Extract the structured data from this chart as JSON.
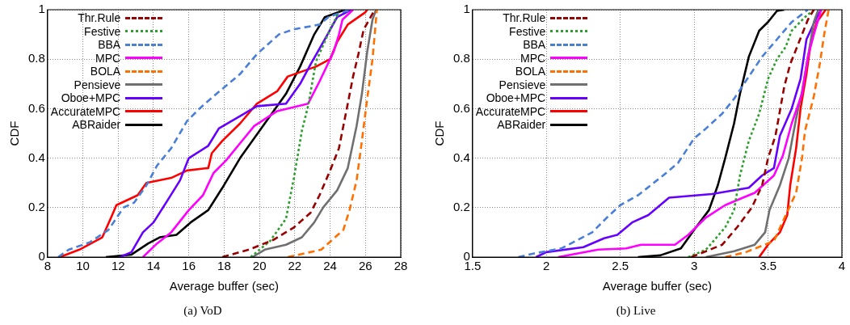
{
  "chart_data": [
    {
      "type": "line",
      "title": "(a) VoD",
      "xlabel": "Average buffer (sec)",
      "ylabel": "CDF",
      "xlim": [
        8,
        28
      ],
      "xticks": [
        8,
        10,
        12,
        14,
        16,
        18,
        20,
        22,
        24,
        26,
        28
      ],
      "ylim": [
        0,
        1
      ],
      "yticks": [
        0,
        0.2,
        0.4,
        0.6,
        0.8,
        1
      ],
      "grid": true,
      "legend": "top left",
      "marker": "none",
      "series": [
        {
          "name": "Thr.Rule",
          "color": "#990000",
          "line_style": "dashed",
          "x": [
            17.9,
            19.4,
            20.8,
            21.95,
            22.9,
            23.4,
            24.0,
            24.5,
            24.75,
            25.0,
            25.3,
            25.6,
            25.9,
            26.45
          ],
          "values": [
            0,
            0.03,
            0.07,
            0.12,
            0.18,
            0.25,
            0.35,
            0.44,
            0.53,
            0.62,
            0.73,
            0.82,
            0.92,
            0.99
          ]
        },
        {
          "name": "Festive",
          "color": "#2ca02c",
          "line_style": "dotted",
          "x": [
            19.5,
            20.6,
            21.5,
            21.95,
            22.4,
            22.75,
            23.2,
            24.0,
            24.5
          ],
          "values": [
            0,
            0.065,
            0.155,
            0.32,
            0.51,
            0.61,
            0.79,
            0.92,
            0.99
          ]
        },
        {
          "name": "BBA",
          "color": "#4a7fd8",
          "line_style": "dashed",
          "x": [
            8.6,
            9.2,
            10.4,
            11.45,
            12.3,
            12.9,
            13.6,
            14.2,
            15.0,
            15.9,
            16.6,
            17.4,
            18.9,
            19.85,
            21.1,
            21.9,
            23.4,
            23.9,
            24.7,
            25.2
          ],
          "values": [
            0,
            0.03,
            0.06,
            0.11,
            0.2,
            0.22,
            0.29,
            0.37,
            0.44,
            0.55,
            0.6,
            0.65,
            0.74,
            0.82,
            0.9,
            0.92,
            0.94,
            0.97,
            0.99,
            1
          ]
        },
        {
          "name": "MPC",
          "color": "#ff00ff",
          "line_style": "solid",
          "x": [
            13.4,
            14.2,
            15.0,
            16.0,
            16.8,
            17.4,
            18.1,
            18.9,
            19.7,
            21.0,
            22.75,
            23.4,
            24.2,
            24.5,
            24.7,
            25.3
          ],
          "values": [
            0,
            0.055,
            0.1,
            0.19,
            0.25,
            0.34,
            0.39,
            0.46,
            0.53,
            0.59,
            0.62,
            0.71,
            0.83,
            0.9,
            0.96,
            1
          ]
        },
        {
          "name": "BOLA",
          "color": "#ff7000",
          "line_style": "dashed",
          "x": [
            21.6,
            23.5,
            24.75,
            25.1,
            25.5,
            25.8,
            26.1,
            26.4,
            26.6,
            26.65
          ],
          "values": [
            0,
            0.03,
            0.11,
            0.19,
            0.31,
            0.47,
            0.64,
            0.8,
            0.96,
            1
          ]
        },
        {
          "name": "Pensieve",
          "color": "#707070",
          "line_style": "solid",
          "x": [
            19.6,
            20.3,
            21.5,
            22.4,
            23.1,
            23.6,
            24.4,
            25.0,
            25.5,
            25.8,
            26.1,
            26.4,
            26.6
          ],
          "values": [
            0,
            0.03,
            0.05,
            0.08,
            0.14,
            0.2,
            0.27,
            0.36,
            0.53,
            0.66,
            0.83,
            0.96,
            1
          ]
        },
        {
          "name": "Oboe+MPC",
          "color": "#6600ff",
          "line_style": "solid",
          "x": [
            12.1,
            12.75,
            13.4,
            14.0,
            14.8,
            15.5,
            16.0,
            17.1,
            17.7,
            18.9,
            19.85,
            21.5,
            22.3,
            22.9,
            23.7,
            24.4,
            25.2
          ],
          "values": [
            0,
            0.02,
            0.1,
            0.14,
            0.23,
            0.31,
            0.4,
            0.45,
            0.52,
            0.57,
            0.61,
            0.62,
            0.7,
            0.78,
            0.88,
            0.97,
            1
          ]
        },
        {
          "name": "AccurateMPC",
          "color": "#ff0000",
          "line_style": "solid",
          "x": [
            8.7,
            9.8,
            11.1,
            11.6,
            11.9,
            13.1,
            13.6,
            15.0,
            15.9,
            17.1,
            17.3,
            17.9,
            18.9,
            19.85,
            21.0,
            21.6,
            23.2,
            24.0,
            24.4,
            25.0,
            26.0,
            26.1
          ],
          "values": [
            0,
            0.03,
            0.08,
            0.16,
            0.21,
            0.25,
            0.3,
            0.32,
            0.35,
            0.36,
            0.42,
            0.47,
            0.54,
            0.62,
            0.67,
            0.73,
            0.77,
            0.8,
            0.87,
            0.94,
            0.99,
            1
          ]
        },
        {
          "name": "ABRaider",
          "color": "#000000",
          "line_style": "solid",
          "x": [
            11.3,
            12.75,
            13.7,
            14.35,
            15.3,
            16.1,
            17.1,
            17.9,
            18.9,
            20.2,
            21.5,
            22.3,
            23.1,
            23.7,
            24.85
          ],
          "values": [
            0,
            0.01,
            0.055,
            0.08,
            0.09,
            0.14,
            0.19,
            0.28,
            0.4,
            0.53,
            0.66,
            0.77,
            0.9,
            0.97,
            1
          ]
        }
      ]
    },
    {
      "type": "line",
      "title": "(b) Live",
      "xlabel": "Average buffer (sec)",
      "ylabel": "CDF",
      "xlim": [
        1.5,
        4
      ],
      "xticks": [
        1.5,
        2,
        2.5,
        3,
        3.5,
        4
      ],
      "ylim": [
        0,
        1
      ],
      "yticks": [
        0,
        0.2,
        0.4,
        0.6,
        0.8,
        1
      ],
      "grid": true,
      "legend": "top left",
      "marker": "none",
      "series": [
        {
          "name": "Thr.Rule",
          "color": "#990000",
          "line_style": "dashed",
          "x": [
            2.98,
            3.19,
            3.29,
            3.39,
            3.46,
            3.5,
            3.55,
            3.58,
            3.61,
            3.65,
            3.71,
            3.77,
            3.81
          ],
          "values": [
            0,
            0.05,
            0.12,
            0.2,
            0.29,
            0.4,
            0.49,
            0.59,
            0.69,
            0.78,
            0.87,
            0.96,
            1
          ]
        },
        {
          "name": "Festive",
          "color": "#2ca02c",
          "line_style": "dotted",
          "x": [
            2.96,
            3.08,
            3.21,
            3.27,
            3.31,
            3.37,
            3.44,
            3.5,
            3.56,
            3.62,
            3.66,
            3.75,
            3.81
          ],
          "values": [
            0,
            0.03,
            0.12,
            0.19,
            0.33,
            0.47,
            0.58,
            0.72,
            0.8,
            0.85,
            0.915,
            0.97,
            1
          ]
        },
        {
          "name": "BBA",
          "color": "#4a7fd8",
          "line_style": "dashed",
          "x": [
            1.81,
            1.91,
            2.1,
            2.31,
            2.41,
            2.5,
            2.62,
            2.79,
            2.89,
            3.0,
            3.08,
            3.19,
            3.27,
            3.37,
            3.46,
            3.56,
            3.66,
            3.77
          ],
          "values": [
            0,
            0.014,
            0.035,
            0.1,
            0.16,
            0.21,
            0.25,
            0.33,
            0.38,
            0.48,
            0.52,
            0.58,
            0.64,
            0.73,
            0.81,
            0.88,
            0.95,
            1
          ]
        },
        {
          "name": "MPC",
          "color": "#ff00ff",
          "line_style": "solid",
          "x": [
            2.08,
            2.35,
            2.54,
            2.64,
            2.87,
            2.96,
            3.08,
            3.21,
            3.33,
            3.41,
            3.54,
            3.6,
            3.66,
            3.73,
            3.77,
            3.81,
            3.86
          ],
          "values": [
            0,
            0.03,
            0.035,
            0.05,
            0.05,
            0.09,
            0.16,
            0.21,
            0.24,
            0.26,
            0.33,
            0.41,
            0.54,
            0.66,
            0.81,
            0.9,
            1
          ]
        },
        {
          "name": "BOLA",
          "color": "#ff7000",
          "line_style": "dashed",
          "x": [
            3.21,
            3.35,
            3.54,
            3.62,
            3.69,
            3.73,
            3.75,
            3.81,
            3.85,
            3.88,
            3.91
          ],
          "values": [
            0,
            0.02,
            0.065,
            0.17,
            0.26,
            0.4,
            0.51,
            0.65,
            0.78,
            0.9,
            1
          ]
        },
        {
          "name": "Pensieve",
          "color": "#707070",
          "line_style": "solid",
          "x": [
            3.08,
            3.27,
            3.41,
            3.48,
            3.51,
            3.58,
            3.64,
            3.69,
            3.73,
            3.77,
            3.81,
            3.84
          ],
          "values": [
            0,
            0.024,
            0.05,
            0.1,
            0.19,
            0.29,
            0.4,
            0.56,
            0.67,
            0.81,
            0.95,
            1
          ]
        },
        {
          "name": "Oboe+MPC",
          "color": "#6600ff",
          "line_style": "solid",
          "x": [
            1.93,
            2.0,
            2.25,
            2.39,
            2.48,
            2.58,
            2.69,
            2.83,
            3.12,
            3.37,
            3.46,
            3.54,
            3.58,
            3.66,
            3.72,
            3.76,
            3.83,
            3.86
          ],
          "values": [
            0,
            0.02,
            0.04,
            0.076,
            0.09,
            0.14,
            0.17,
            0.24,
            0.255,
            0.28,
            0.33,
            0.36,
            0.49,
            0.6,
            0.72,
            0.88,
            0.97,
            1
          ]
        },
        {
          "name": "AccurateMPC",
          "color": "#ff0000",
          "line_style": "solid",
          "x": [
            3.44,
            3.5,
            3.58,
            3.63,
            3.65,
            3.69,
            3.72,
            3.76,
            3.79,
            3.83,
            3.89
          ],
          "values": [
            0,
            0.05,
            0.1,
            0.17,
            0.29,
            0.44,
            0.6,
            0.74,
            0.87,
            0.95,
            1
          ]
        },
        {
          "name": "ABRaider",
          "color": "#000000",
          "line_style": "solid",
          "x": [
            2.62,
            2.77,
            2.91,
            3.0,
            3.1,
            3.16,
            3.21,
            3.27,
            3.31,
            3.37,
            3.44,
            3.5,
            3.56,
            3.61
          ],
          "values": [
            0,
            0.007,
            0.035,
            0.11,
            0.19,
            0.29,
            0.4,
            0.54,
            0.66,
            0.81,
            0.915,
            0.95,
            0.995,
            1
          ]
        }
      ]
    }
  ]
}
